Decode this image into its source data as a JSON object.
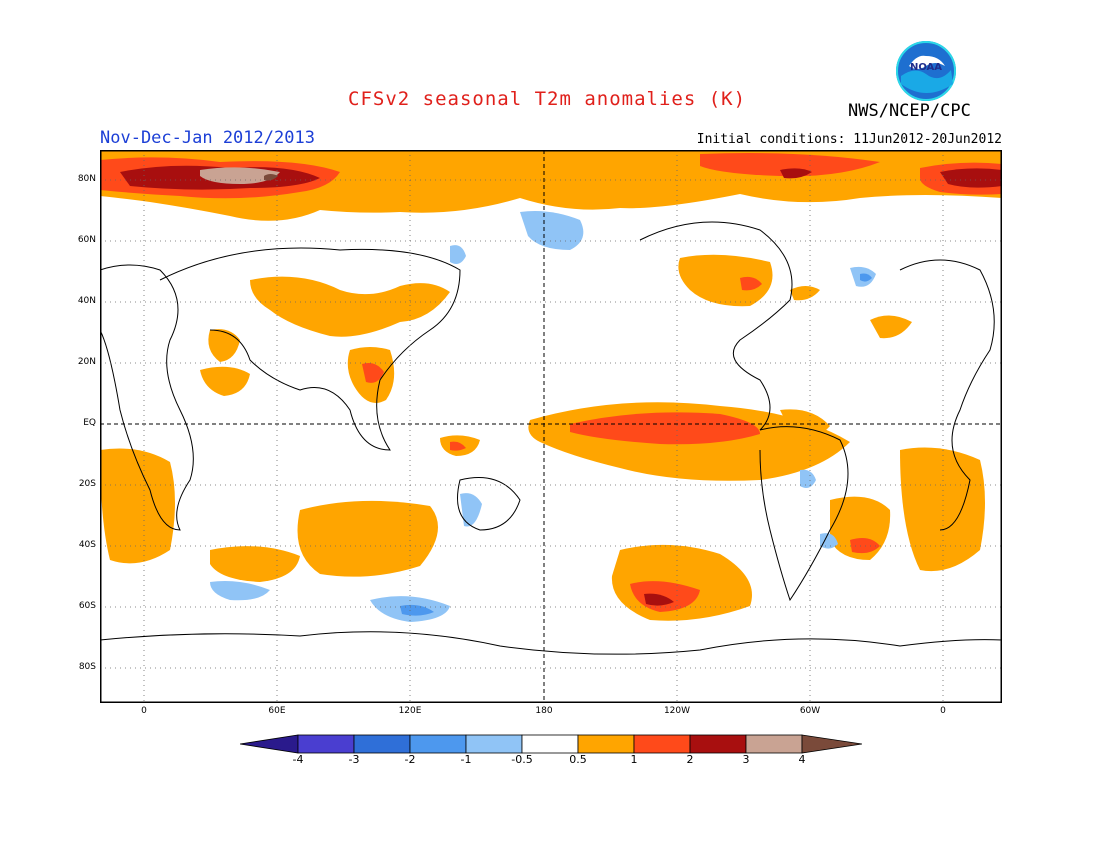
{
  "header": {
    "title": "CFSv2 seasonal T2m anomalies (K)",
    "center": "NWS/NCEP/CPC",
    "season": "Nov-Dec-Jan 2012/2013",
    "initial_conditions": "Initial conditions: 11Jun2012-20Jun2012",
    "logo_text": "NOAA"
  },
  "map": {
    "lat_labels": [
      "80N",
      "60N",
      "40N",
      "20N",
      "EQ",
      "20S",
      "40S",
      "60S",
      "80S"
    ],
    "lon_labels": [
      "0",
      "60E",
      "120E",
      "180",
      "120W",
      "60W",
      "0"
    ]
  },
  "colorbar": {
    "labels": [
      "-4",
      "-3",
      "-2",
      "-1",
      "-0.5",
      "0.5",
      "1",
      "2",
      "3",
      "4"
    ],
    "colors": [
      "#2a1a8c",
      "#4a3ed0",
      "#2f6fd8",
      "#4d98ee",
      "#90c4f6",
      "#ffffff",
      "#ffa500",
      "#ff4a1a",
      "#a80f0f",
      "#c9a393",
      "#7a4a3a"
    ]
  }
}
